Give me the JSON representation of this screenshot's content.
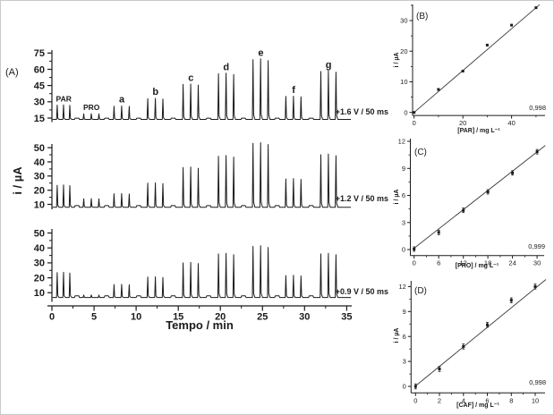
{
  "figure": {
    "background": "#ffffff",
    "ink_color": "#1b1b1b",
    "fit_line_color": "#3d3d3d"
  },
  "chart_data": [
    {
      "id": "A",
      "type": "line",
      "label": "(A)",
      "xlabel": "Tempo / min",
      "ylabel": "i / µA",
      "xlim": [
        0,
        35.7
      ],
      "xticks": [
        0,
        5,
        10,
        15,
        20,
        25,
        30,
        35
      ],
      "peak_labels": [
        "PAR",
        "PRO",
        "a",
        "b",
        "c",
        "d",
        "e",
        "f",
        "g"
      ],
      "spike_times": [
        [
          0.65,
          1.4,
          2.15
        ],
        [
          3.8,
          4.7,
          5.6
        ],
        [
          7.4,
          8.3,
          9.2
        ],
        [
          11.4,
          12.3,
          13.2
        ],
        [
          15.6,
          16.5,
          17.4
        ],
        [
          19.8,
          20.7,
          21.6
        ],
        [
          23.9,
          24.8,
          25.7
        ],
        [
          27.8,
          28.7,
          29.6
        ],
        [
          31.95,
          32.85,
          33.75
        ]
      ],
      "traces": [
        {
          "name": "+1.6 V / 50 ms",
          "yticks": [
            15,
            30,
            45,
            60,
            75
          ],
          "ylim": [
            11,
            78
          ],
          "baseline": 13.8,
          "peaks": [
            27,
            19,
            26,
            33,
            46,
            56,
            69,
            35,
            58
          ]
        },
        {
          "name": "+1.2 V / 50 ms",
          "yticks": [
            10,
            20,
            30,
            40,
            50
          ],
          "ylim": [
            6.5,
            52.5
          ],
          "baseline": 8,
          "peaks": [
            23.5,
            14,
            17.5,
            25,
            36,
            44,
            53,
            28,
            45
          ]
        },
        {
          "name": "+0.9 V / 50 ms",
          "yticks": [
            10,
            20,
            30,
            40,
            50
          ],
          "ylim": [
            3.9,
            52.7
          ],
          "baseline": 6.8,
          "peaks": [
            23.5,
            8.5,
            15.5,
            20.5,
            30,
            36,
            41,
            21.5,
            36
          ]
        }
      ]
    },
    {
      "id": "B",
      "type": "scatter",
      "label": "(B)",
      "xlabel": "[PAR] / mg L⁻¹",
      "ylabel": "i / µA",
      "r_label": "0,998",
      "xticks": [
        0,
        20,
        40
      ],
      "yticks": [
        0,
        10,
        20,
        30
      ],
      "xlim": [
        -0.6,
        53.8
      ],
      "ylim": [
        -1,
        35.3
      ],
      "x": [
        0,
        10,
        20,
        30,
        40,
        50
      ],
      "y": [
        0,
        7.5,
        13.5,
        22,
        28.5,
        34.2
      ],
      "err": null,
      "fit": {
        "x1": 0,
        "y1": 0,
        "x2": 51.5,
        "y2": 35.2
      }
    },
    {
      "id": "C",
      "type": "scatter",
      "label": "(C)",
      "xlabel": "[PRO] / mg L⁻¹",
      "ylabel": "i / µA",
      "r_label": "0,999",
      "xticks": [
        0,
        6,
        12,
        18,
        24,
        30
      ],
      "yticks": [
        0,
        3,
        6,
        9,
        12
      ],
      "xlim": [
        -0.95,
        31.7
      ],
      "ylim": [
        -0.66,
        12.3
      ],
      "x": [
        0,
        6,
        12,
        18,
        24,
        30
      ],
      "y": [
        0.05,
        1.9,
        4.35,
        6.4,
        8.5,
        10.85
      ],
      "err": 0.25,
      "fit": {
        "x1": 0,
        "y1": 0.15,
        "x2": 32,
        "y2": 11.55
      }
    },
    {
      "id": "D",
      "type": "scatter",
      "label": "(D)",
      "xlabel": "[CAF] / mg L⁻¹",
      "ylabel": "i / µA",
      "r_label": "0,998",
      "xticks": [
        0,
        2,
        4,
        6,
        8,
        10
      ],
      "yticks": [
        0,
        3,
        6,
        9,
        12
      ],
      "xlim": [
        -0.43,
        10.8
      ],
      "ylim": [
        -0.7,
        13
      ],
      "x": [
        0,
        2,
        4,
        6,
        8,
        10
      ],
      "y": [
        0,
        2.1,
        4.8,
        7.4,
        10.35,
        12.0
      ],
      "err": 0.3,
      "fit": {
        "x1": 0,
        "y1": 0.05,
        "x2": 10.9,
        "y2": 12.85
      }
    }
  ]
}
